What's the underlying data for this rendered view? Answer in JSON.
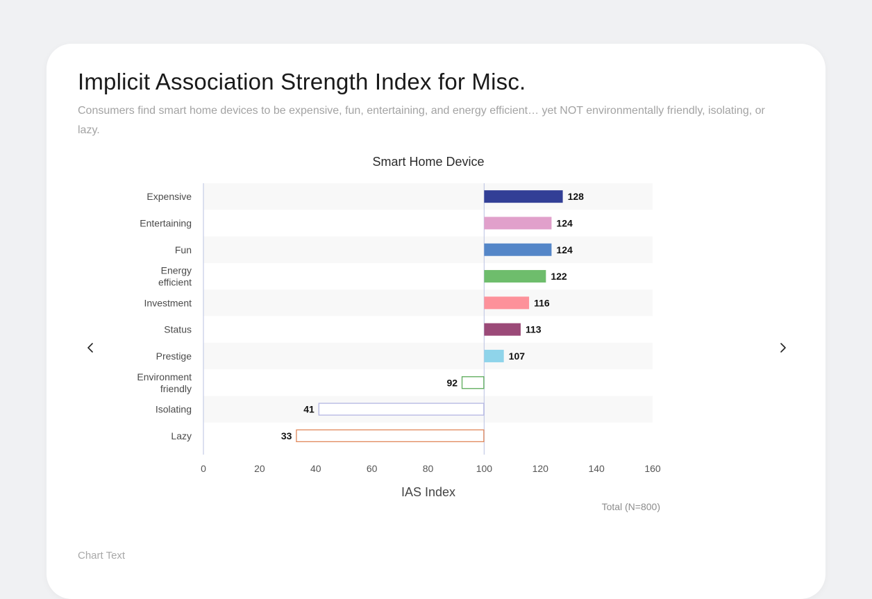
{
  "page": {
    "title": "Implicit Association Strength Index for Misc.",
    "subtitle": "Consumers find smart home devices to be expensive, fun, entertaining, and energy efficient… yet NOT environmentally friendly, isolating, or lazy.",
    "footer_text": "Chart Text",
    "nav": {
      "prev_icon": "chevron-left-icon",
      "next_icon": "chevron-right-icon"
    }
  },
  "chart_data": {
    "type": "bar",
    "orientation": "horizontal",
    "title": "Smart Home Device",
    "xlabel": "IAS Index",
    "ylabel": "",
    "note": "Total (N=800)",
    "baseline": 100,
    "xlim": [
      0,
      160
    ],
    "xticks": [
      0,
      20,
      40,
      60,
      80,
      100,
      120,
      140,
      160
    ],
    "grid": false,
    "categories": [
      [
        "Expensive"
      ],
      [
        "Entertaining"
      ],
      [
        "Fun"
      ],
      [
        "Energy",
        "efficient"
      ],
      [
        "Investment"
      ],
      [
        "Status"
      ],
      [
        "Prestige"
      ],
      [
        "Environment",
        "friendly"
      ],
      [
        "Isolating"
      ],
      [
        "Lazy"
      ]
    ],
    "values": [
      128,
      124,
      124,
      122,
      116,
      113,
      107,
      92,
      41,
      33
    ],
    "colors": [
      "#323f96",
      "#e1a0cb",
      "#5486c8",
      "#6ebd6c",
      "#fd919a",
      "#9b4a78",
      "#8fd4ea",
      "#5aab58",
      "#b3b5e2",
      "#e0885a"
    ],
    "filled": [
      true,
      true,
      true,
      true,
      true,
      true,
      true,
      false,
      false,
      false
    ]
  }
}
